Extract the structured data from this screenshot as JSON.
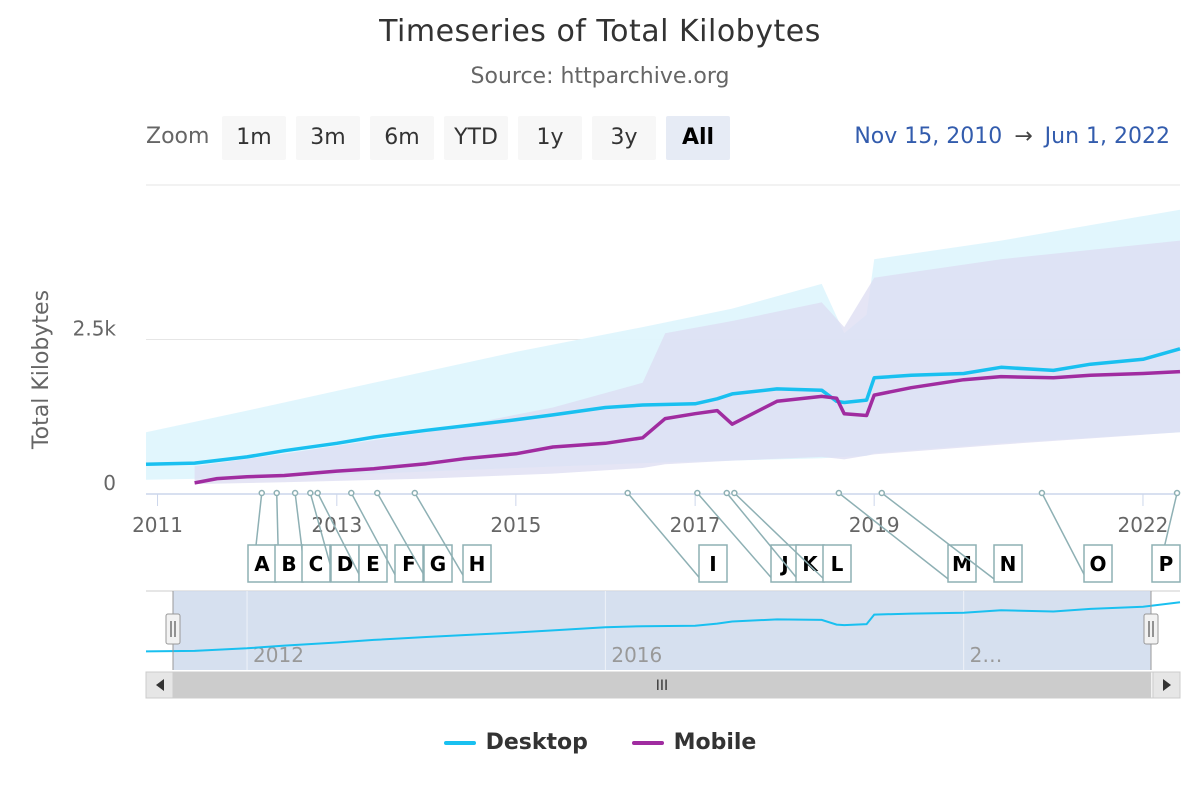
{
  "title": "Timeseries of Total Kilobytes",
  "subtitle": "Source: httparchive.org",
  "zoom": {
    "label": "Zoom",
    "buttons": [
      "1m",
      "3m",
      "6m",
      "YTD",
      "1y",
      "3y",
      "All"
    ],
    "active": "All"
  },
  "range": {
    "from": "Nov 15, 2010",
    "arrow": "→",
    "to": "Jun 1, 2022"
  },
  "navigator": {
    "scroll_grip": "III"
  },
  "colors": {
    "desktop": "#19c0f0",
    "mobile": "#a02ca0",
    "desktop_band": "#dff6fd",
    "mobile_band": "#dcdcf2",
    "navigator_mask": "#cfdaec",
    "flag_stroke": "#8eb0b4"
  },
  "chart_data": {
    "type": "line",
    "title": "Timeseries of Total Kilobytes",
    "subtitle": "Source: httparchive.org",
    "ylabel": "Total Kilobytes",
    "ylim": [
      0,
      5000
    ],
    "xlim": [
      "2010-11-15",
      "2022-06-01"
    ],
    "y_ticks": [
      {
        "value": 0,
        "label": "0"
      },
      {
        "value": 2500,
        "label": "2.5k"
      }
    ],
    "x_ticks": [
      {
        "date": "2011-01-01",
        "label": "2011"
      },
      {
        "date": "2013-01-01",
        "label": "2013"
      },
      {
        "date": "2015-01-01",
        "label": "2015"
      },
      {
        "date": "2017-01-01",
        "label": "2017"
      },
      {
        "date": "2019-01-01",
        "label": "2019"
      },
      {
        "date": "2022-01-01",
        "label": "2022"
      }
    ],
    "navigator_ticks": [
      {
        "date": "2012-01-01",
        "label": "2012"
      },
      {
        "date": "2016-01-01",
        "label": "2016"
      },
      {
        "date": "2020-01-01",
        "label": "2…"
      }
    ],
    "grid": true,
    "legend_position": "bottom-center",
    "series": [
      {
        "name": "Desktop",
        "x": [
          "2010-11-15",
          "2011-06-01",
          "2012-01-01",
          "2012-06-01",
          "2013-01-01",
          "2013-06-01",
          "2014-01-01",
          "2014-06-01",
          "2015-01-01",
          "2015-06-01",
          "2016-01-01",
          "2016-06-01",
          "2017-01-01",
          "2017-04-01",
          "2017-06-01",
          "2017-12-01",
          "2018-06-01",
          "2018-08-01",
          "2018-09-01",
          "2018-12-01",
          "2019-01-01",
          "2019-06-01",
          "2020-01-01",
          "2020-06-01",
          "2021-01-01",
          "2021-06-01",
          "2022-01-01",
          "2022-06-01"
        ],
        "y": [
          480,
          500,
          600,
          700,
          820,
          920,
          1030,
          1100,
          1200,
          1280,
          1400,
          1440,
          1460,
          1540,
          1620,
          1700,
          1680,
          1500,
          1480,
          1520,
          1880,
          1920,
          1950,
          2050,
          2000,
          2100,
          2180,
          2350
        ]
      },
      {
        "name": "Mobile",
        "x": [
          "2011-06-01",
          "2011-09-01",
          "2012-01-01",
          "2012-06-01",
          "2013-01-01",
          "2013-06-01",
          "2014-01-01",
          "2014-06-01",
          "2015-01-01",
          "2015-06-01",
          "2016-01-01",
          "2016-06-01",
          "2016-09-01",
          "2017-01-01",
          "2017-04-01",
          "2017-06-01",
          "2017-12-01",
          "2018-06-01",
          "2018-08-01",
          "2018-09-01",
          "2018-12-01",
          "2019-01-01",
          "2019-06-01",
          "2020-01-01",
          "2020-06-01",
          "2021-01-01",
          "2021-06-01",
          "2022-01-01",
          "2022-06-01"
        ],
        "y": [
          180,
          250,
          280,
          300,
          370,
          410,
          490,
          570,
          650,
          760,
          820,
          910,
          1220,
          1300,
          1350,
          1130,
          1500,
          1580,
          1550,
          1300,
          1270,
          1600,
          1720,
          1850,
          1900,
          1880,
          1920,
          1950,
          1980
        ]
      }
    ],
    "bands": [
      {
        "name": "Desktop",
        "x": [
          "2010-11-15",
          "2012-01-01",
          "2013-06-01",
          "2015-01-01",
          "2016-06-01",
          "2017-06-01",
          "2018-06-01",
          "2018-09-01",
          "2018-12-01",
          "2019-01-01",
          "2020-06-01",
          "2022-06-01"
        ],
        "low": [
          230,
          260,
          330,
          420,
          500,
          540,
          580,
          600,
          620,
          660,
          820,
          1000
        ],
        "high": [
          1000,
          1350,
          1800,
          2300,
          2700,
          3000,
          3400,
          2600,
          2900,
          3800,
          4100,
          4600
        ]
      },
      {
        "name": "Mobile",
        "x": [
          "2011-06-01",
          "2012-06-01",
          "2014-01-01",
          "2015-06-01",
          "2016-06-01",
          "2016-09-01",
          "2017-06-01",
          "2018-06-01",
          "2018-09-01",
          "2019-01-01",
          "2020-06-01",
          "2022-06-01"
        ],
        "low": [
          160,
          190,
          250,
          330,
          420,
          480,
          540,
          600,
          560,
          640,
          800,
          1000
        ],
        "high": [
          450,
          650,
          1000,
          1400,
          1800,
          2600,
          2800,
          3100,
          2700,
          3500,
          3800,
          4100
        ]
      }
    ],
    "flags": [
      {
        "title": "A",
        "date": "2012-03-01"
      },
      {
        "title": "B",
        "date": "2012-05-01"
      },
      {
        "title": "C",
        "date": "2012-07-15"
      },
      {
        "title": "D",
        "date": "2012-09-15"
      },
      {
        "title": "E",
        "date": "2012-10-15"
      },
      {
        "title": "F",
        "date": "2013-03-01"
      },
      {
        "title": "G",
        "date": "2013-06-15"
      },
      {
        "title": "H",
        "date": "2013-11-15"
      },
      {
        "title": "I",
        "date": "2016-04-01"
      },
      {
        "title": "J",
        "date": "2017-01-10"
      },
      {
        "title": "K",
        "date": "2017-05-10"
      },
      {
        "title": "L",
        "date": "2017-06-10"
      },
      {
        "title": "M",
        "date": "2018-08-10"
      },
      {
        "title": "N",
        "date": "2019-02-01"
      },
      {
        "title": "O",
        "date": "2020-11-15"
      },
      {
        "title": "P",
        "date": "2022-05-20"
      }
    ]
  },
  "legend": [
    {
      "name": "Desktop",
      "color": "#19c0f0"
    },
    {
      "name": "Mobile",
      "color": "#a02ca0"
    }
  ]
}
